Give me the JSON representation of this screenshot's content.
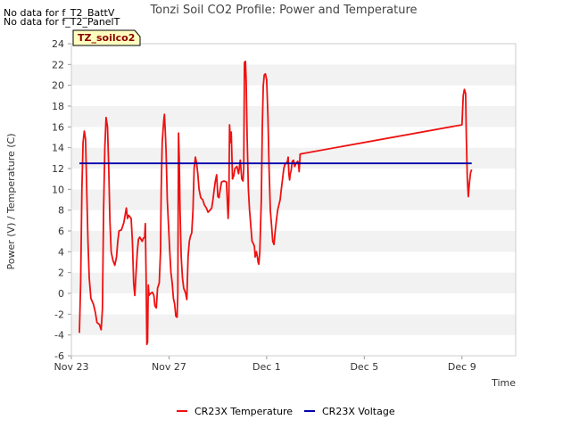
{
  "no_data_messages": [
    "No data for f_T2_BattV",
    "No data for f_T2_PanelT"
  ],
  "badge_label": "TZ_soilco2",
  "chart_data": {
    "type": "line",
    "title": "Tonzi Soil CO2 Profile: Power and Temperature",
    "xlabel": "Time",
    "ylabel": "Power (V) / Temperature (C)",
    "x_ticks": [
      "Nov 23",
      "Nov 27",
      "Dec 1",
      "Dec 5",
      "Dec 9"
    ],
    "x_tick_day_offsets": [
      0,
      4,
      8,
      12,
      16
    ],
    "xlim_day_offsets": [
      0,
      18.2
    ],
    "ylim": [
      -6,
      24
    ],
    "y_ticks": [
      -6,
      -4,
      -2,
      0,
      2,
      4,
      6,
      8,
      10,
      12,
      14,
      16,
      18,
      20,
      22,
      24
    ],
    "grid": "horizontal bands",
    "legend_placement": "bottom-center",
    "series": [
      {
        "name": "CR23X Temperature",
        "color": "#ee1111",
        "points": [
          [
            0.33,
            -3.8
          ],
          [
            0.38,
            1.0
          ],
          [
            0.43,
            10.0
          ],
          [
            0.48,
            14.5
          ],
          [
            0.53,
            15.6
          ],
          [
            0.58,
            14.8
          ],
          [
            0.63,
            10.0
          ],
          [
            0.68,
            5.0
          ],
          [
            0.73,
            1.5
          ],
          [
            0.8,
            -0.5
          ],
          [
            0.9,
            -1.0
          ],
          [
            0.98,
            -1.8
          ],
          [
            1.05,
            -2.8
          ],
          [
            1.15,
            -3.0
          ],
          [
            1.22,
            -3.5
          ],
          [
            1.27,
            -1.5
          ],
          [
            1.32,
            8.0
          ],
          [
            1.37,
            14.0
          ],
          [
            1.42,
            16.9
          ],
          [
            1.48,
            16.0
          ],
          [
            1.53,
            12.0
          ],
          [
            1.58,
            7.0
          ],
          [
            1.63,
            4.0
          ],
          [
            1.7,
            3.2
          ],
          [
            1.78,
            2.7
          ],
          [
            1.85,
            3.5
          ],
          [
            1.9,
            5.0
          ],
          [
            1.95,
            6.0
          ],
          [
            2.05,
            6.1
          ],
          [
            2.15,
            6.8
          ],
          [
            2.2,
            7.5
          ],
          [
            2.25,
            8.2
          ],
          [
            2.3,
            7.2
          ],
          [
            2.35,
            7.5
          ],
          [
            2.45,
            7.2
          ],
          [
            2.5,
            5.0
          ],
          [
            2.55,
            1.0
          ],
          [
            2.6,
            -0.2
          ],
          [
            2.65,
            2.0
          ],
          [
            2.7,
            4.0
          ],
          [
            2.75,
            5.2
          ],
          [
            2.8,
            5.4
          ],
          [
            2.9,
            5.0
          ],
          [
            2.95,
            5.3
          ],
          [
            3.0,
            5.4
          ],
          [
            3.03,
            6.7
          ],
          [
            3.06,
            2.0
          ],
          [
            3.09,
            -4.9
          ],
          [
            3.12,
            -4.7
          ],
          [
            3.15,
            0.8
          ],
          [
            3.18,
            -0.2
          ],
          [
            3.25,
            0.0
          ],
          [
            3.32,
            0.1
          ],
          [
            3.38,
            -0.2
          ],
          [
            3.42,
            -1.2
          ],
          [
            3.48,
            -1.4
          ],
          [
            3.53,
            0.5
          ],
          [
            3.6,
            1.0
          ],
          [
            3.65,
            4.0
          ],
          [
            3.68,
            10.0
          ],
          [
            3.72,
            14.5
          ],
          [
            3.78,
            16.5
          ],
          [
            3.81,
            17.2
          ],
          [
            3.85,
            15.5
          ],
          [
            3.88,
            13.5
          ],
          [
            3.93,
            9.0
          ],
          [
            3.98,
            6.5
          ],
          [
            4.03,
            4.0
          ],
          [
            4.08,
            2.0
          ],
          [
            4.13,
            1.0
          ],
          [
            4.18,
            -0.5
          ],
          [
            4.23,
            -1.0
          ],
          [
            4.28,
            -2.2
          ],
          [
            4.33,
            -2.3
          ],
          [
            4.36,
            0.0
          ],
          [
            4.39,
            15.4
          ],
          [
            4.42,
            13.0
          ],
          [
            4.45,
            8.0
          ],
          [
            4.5,
            3.5
          ],
          [
            4.55,
            1.5
          ],
          [
            4.6,
            0.5
          ],
          [
            4.68,
            0.0
          ],
          [
            4.73,
            -0.6
          ],
          [
            4.78,
            3.5
          ],
          [
            4.83,
            5.0
          ],
          [
            4.88,
            5.5
          ],
          [
            4.93,
            5.8
          ],
          [
            4.98,
            8.0
          ],
          [
            5.03,
            12.0
          ],
          [
            5.08,
            13.1
          ],
          [
            5.13,
            12.5
          ],
          [
            5.18,
            11.5
          ],
          [
            5.23,
            10.0
          ],
          [
            5.3,
            9.2
          ],
          [
            5.38,
            9.0
          ],
          [
            5.45,
            8.5
          ],
          [
            5.53,
            8.2
          ],
          [
            5.6,
            7.8
          ],
          [
            5.68,
            8.0
          ],
          [
            5.75,
            8.2
          ],
          [
            5.8,
            9.0
          ],
          [
            5.85,
            10.0
          ],
          [
            5.9,
            10.8
          ],
          [
            5.95,
            11.4
          ],
          [
            6.0,
            9.3
          ],
          [
            6.05,
            9.2
          ],
          [
            6.1,
            10.0
          ],
          [
            6.15,
            10.7
          ],
          [
            6.25,
            10.8
          ],
          [
            6.35,
            10.7
          ],
          [
            6.42,
            7.2
          ],
          [
            6.45,
            9.0
          ],
          [
            6.48,
            16.2
          ],
          [
            6.52,
            14.5
          ],
          [
            6.55,
            15.5
          ],
          [
            6.6,
            11.0
          ],
          [
            6.65,
            11.3
          ],
          [
            6.7,
            12.0
          ],
          [
            6.78,
            12.2
          ],
          [
            6.85,
            11.5
          ],
          [
            6.92,
            12.8
          ],
          [
            6.98,
            11.0
          ],
          [
            7.03,
            10.8
          ],
          [
            7.06,
            12.0
          ],
          [
            7.09,
            22.2
          ],
          [
            7.13,
            22.3
          ],
          [
            7.16,
            20.5
          ],
          [
            7.2,
            15.0
          ],
          [
            7.25,
            10.0
          ],
          [
            7.3,
            8.0
          ],
          [
            7.35,
            6.5
          ],
          [
            7.4,
            5.0
          ],
          [
            7.45,
            4.8
          ],
          [
            7.5,
            4.5
          ],
          [
            7.53,
            3.5
          ],
          [
            7.58,
            4.0
          ],
          [
            7.62,
            3.5
          ],
          [
            7.65,
            3.0
          ],
          [
            7.68,
            2.8
          ],
          [
            7.72,
            4.0
          ],
          [
            7.78,
            9.0
          ],
          [
            7.82,
            16.0
          ],
          [
            7.86,
            20.0
          ],
          [
            7.9,
            21.0
          ],
          [
            7.95,
            21.1
          ],
          [
            8.0,
            20.5
          ],
          [
            8.05,
            17.0
          ],
          [
            8.1,
            12.0
          ],
          [
            8.15,
            8.0
          ],
          [
            8.2,
            6.5
          ],
          [
            8.25,
            5.0
          ],
          [
            8.3,
            4.7
          ],
          [
            8.35,
            6.0
          ],
          [
            8.4,
            7.0
          ],
          [
            8.45,
            8.0
          ],
          [
            8.5,
            8.5
          ],
          [
            8.55,
            9.0
          ],
          [
            8.6,
            10.0
          ],
          [
            8.65,
            11.0
          ],
          [
            8.7,
            12.0
          ],
          [
            8.75,
            12.4
          ],
          [
            8.8,
            12.5
          ],
          [
            8.85,
            12.7
          ],
          [
            8.88,
            13.1
          ],
          [
            8.91,
            11.5
          ],
          [
            8.94,
            10.9
          ],
          [
            8.97,
            11.5
          ],
          [
            9.0,
            11.8
          ],
          [
            9.05,
            12.7
          ],
          [
            9.1,
            12.8
          ],
          [
            9.15,
            12.2
          ],
          [
            9.2,
            12.5
          ],
          [
            9.27,
            12.7
          ],
          [
            9.3,
            12.5
          ],
          [
            9.33,
            11.7
          ],
          [
            9.37,
            13.4
          ],
          [
            16.0,
            16.2
          ],
          [
            16.05,
            19.0
          ],
          [
            16.1,
            19.6
          ],
          [
            16.15,
            19.2
          ],
          [
            16.18,
            15.0
          ],
          [
            16.22,
            11.0
          ],
          [
            16.26,
            9.3
          ],
          [
            16.3,
            10.5
          ],
          [
            16.35,
            11.6
          ],
          [
            16.4,
            11.9
          ]
        ]
      },
      {
        "name": "CR23X Voltage",
        "color": "#0000aa",
        "points": [
          [
            0.33,
            12.5
          ],
          [
            16.4,
            12.5
          ]
        ]
      }
    ]
  }
}
